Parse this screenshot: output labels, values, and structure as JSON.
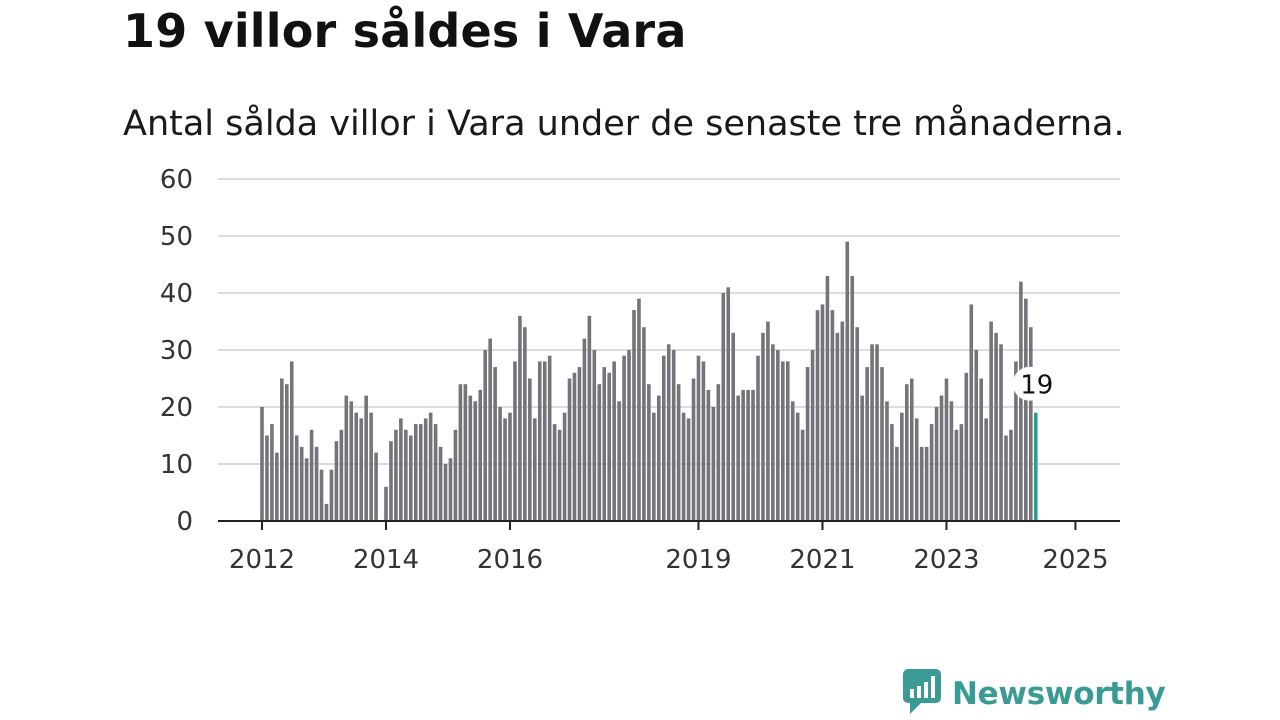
{
  "title": "19 villor såldes i Vara",
  "subtitle": "Antal sålda villor i Vara under de senaste tre månaderna.",
  "brand": {
    "name": "Newsworthy",
    "color": "#3a9b94",
    "icon": "chart-bubble-icon"
  },
  "chart_data": {
    "type": "bar",
    "ylim": [
      0,
      60
    ],
    "yticks": [
      "0",
      "10",
      "20",
      "30",
      "40",
      "50",
      "60"
    ],
    "xticks": [
      "2012",
      "2014",
      "2016",
      "2019",
      "2021",
      "2023",
      "2025"
    ],
    "grid": true,
    "bar_color": "#75747b",
    "highlight_color": "#2a9c95",
    "highlight_label": "19",
    "values": [
      20,
      15,
      17,
      12,
      25,
      24,
      28,
      15,
      13,
      11,
      16,
      13,
      9,
      3,
      9,
      14,
      16,
      22,
      21,
      19,
      18,
      22,
      19,
      12,
      0,
      6,
      14,
      16,
      18,
      16,
      15,
      17,
      17,
      18,
      19,
      17,
      13,
      10,
      11,
      16,
      24,
      24,
      22,
      21,
      23,
      30,
      32,
      27,
      20,
      18,
      19,
      28,
      36,
      34,
      25,
      18,
      28,
      28,
      29,
      17,
      16,
      19,
      25,
      26,
      27,
      32,
      36,
      30,
      24,
      27,
      26,
      28,
      21,
      29,
      30,
      37,
      39,
      34,
      24,
      19,
      22,
      29,
      31,
      30,
      24,
      19,
      18,
      25,
      29,
      28,
      23,
      20,
      24,
      40,
      41,
      33,
      22,
      23,
      23,
      23,
      29,
      33,
      35,
      31,
      30,
      28,
      28,
      21,
      19,
      16,
      27,
      30,
      37,
      38,
      43,
      37,
      33,
      35,
      49,
      43,
      34,
      22,
      27,
      31,
      31,
      27,
      21,
      17,
      13,
      19,
      24,
      25,
      18,
      13,
      13,
      17,
      20,
      22,
      25,
      21,
      16,
      17,
      26,
      38,
      30,
      25,
      18,
      35,
      33,
      31,
      15,
      16,
      28,
      42,
      39,
      34,
      19
    ]
  }
}
